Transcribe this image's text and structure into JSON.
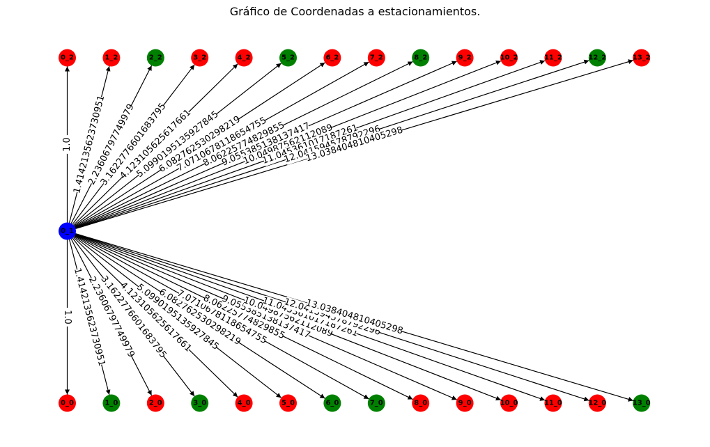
{
  "title": "Gráfico de Coordenadas a estacionamientos.",
  "colors": {
    "red": "#ff0000",
    "green": "#008000",
    "blue": "#0000ff"
  },
  "diagram": {
    "source": {
      "label": "0_1",
      "col": 0,
      "row": 1,
      "color": "blue"
    },
    "top_nodes": [
      {
        "label": "0_2",
        "col": 0,
        "color": "red"
      },
      {
        "label": "1_2",
        "col": 1,
        "color": "red"
      },
      {
        "label": "2_2",
        "col": 2,
        "color": "green"
      },
      {
        "label": "3_2",
        "col": 3,
        "color": "red"
      },
      {
        "label": "4_2",
        "col": 4,
        "color": "red"
      },
      {
        "label": "5_2",
        "col": 5,
        "color": "green"
      },
      {
        "label": "6_2",
        "col": 6,
        "color": "red"
      },
      {
        "label": "7_2",
        "col": 7,
        "color": "red"
      },
      {
        "label": "8_2",
        "col": 8,
        "color": "green"
      },
      {
        "label": "9_2",
        "col": 9,
        "color": "red"
      },
      {
        "label": "10_2",
        "col": 10,
        "color": "red"
      },
      {
        "label": "11_2",
        "col": 11,
        "color": "red"
      },
      {
        "label": "12_2",
        "col": 12,
        "color": "green"
      },
      {
        "label": "13_2",
        "col": 13,
        "color": "red"
      }
    ],
    "bottom_nodes": [
      {
        "label": "0_0",
        "col": 0,
        "color": "red"
      },
      {
        "label": "1_0",
        "col": 1,
        "color": "green"
      },
      {
        "label": "2_0",
        "col": 2,
        "color": "red"
      },
      {
        "label": "3_0",
        "col": 3,
        "color": "green"
      },
      {
        "label": "4_0",
        "col": 4,
        "color": "red"
      },
      {
        "label": "5_0",
        "col": 5,
        "color": "red"
      },
      {
        "label": "6_0",
        "col": 6,
        "color": "green"
      },
      {
        "label": "7_0",
        "col": 7,
        "color": "green"
      },
      {
        "label": "8_0",
        "col": 8,
        "color": "red"
      },
      {
        "label": "9_0",
        "col": 9,
        "color": "red"
      },
      {
        "label": "10_0",
        "col": 10,
        "color": "red"
      },
      {
        "label": "11_0",
        "col": 11,
        "color": "red"
      },
      {
        "label": "12_0",
        "col": 12,
        "color": "red"
      },
      {
        "label": "13_0",
        "col": 13,
        "color": "green"
      }
    ],
    "edge_weights": [
      "1.0",
      "1.4142135623730951",
      "2.23606797749979",
      "3.1622776601683795",
      "4.123105625617661",
      "5.0990195135927845",
      "6.082762530298219",
      "7.0710678118654755",
      "8.06225774829855",
      "9.055385138137417",
      "10.04987562112089",
      "11.045361017187261",
      "12.041594578792296",
      "13.038404810405298"
    ]
  }
}
